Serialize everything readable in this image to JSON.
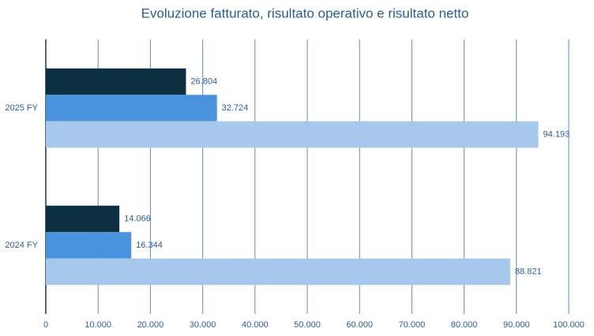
{
  "chart_data": {
    "type": "hbar",
    "title": "Evoluzione fatturato, risultato operativo e risultato netto",
    "categories": [
      "2025 FY",
      "2024 FY"
    ],
    "series": [
      {
        "color": "#0d2f42",
        "values": [
          26804,
          14066
        ],
        "value_labels": [
          "26.804",
          "14.066"
        ]
      },
      {
        "color": "#4a92dc",
        "values": [
          32724,
          16344
        ],
        "value_labels": [
          "32.724",
          "16.344"
        ]
      },
      {
        "color": "#a7c8ec",
        "values": [
          94193,
          88821
        ],
        "value_labels": [
          "94.193",
          "88.821"
        ]
      }
    ],
    "xlim": [
      0,
      100000
    ],
    "xticks": [
      0,
      {
        "value": 10000,
        "label": "10.000"
      },
      {
        "value": 20000,
        "label": "20.000"
      },
      {
        "value": 30000,
        "label": "30.000"
      },
      {
        "value": 40000,
        "label": "40.000"
      },
      {
        "value": 50000,
        "label": "50.000"
      },
      {
        "value": 60000,
        "label": "60.000"
      },
      {
        "value": 70000,
        "label": "70.000"
      },
      {
        "value": 80000,
        "label": "80.000"
      },
      {
        "value": 90000,
        "label": "90.000"
      },
      {
        "value": 100000,
        "label": "100.000"
      }
    ],
    "grid": true
  }
}
